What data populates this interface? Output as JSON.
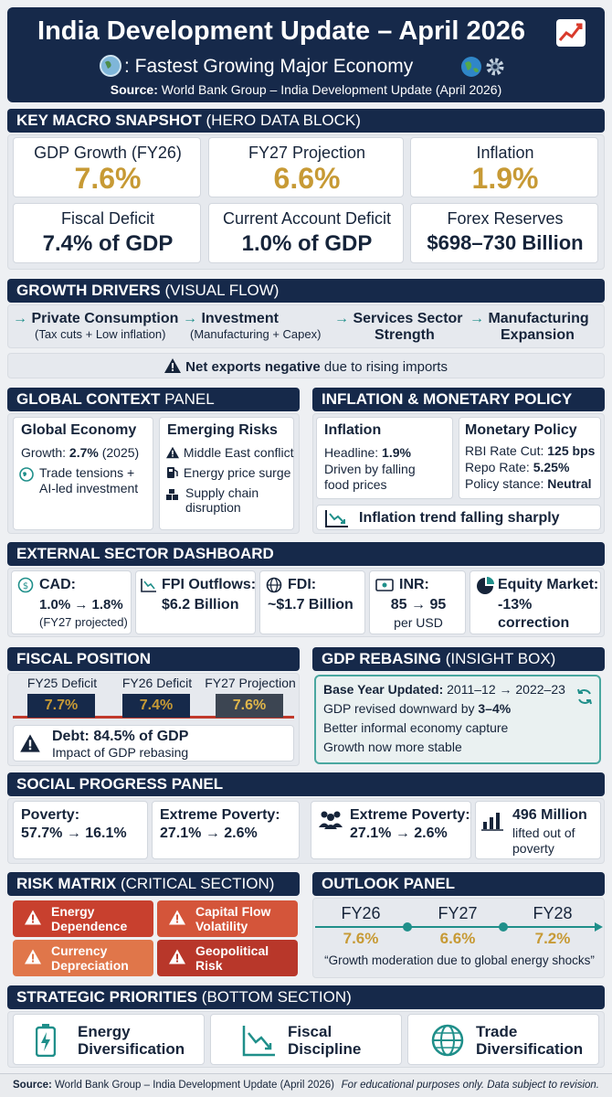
{
  "header": {
    "title": "India Development Update – April 2026",
    "subtitle": ": Fastest Growing Major Economy",
    "source_label": "Source:",
    "source_text": "World Bank Group – India Development Update (April 2026)"
  },
  "macro": {
    "section_bold": "KEY MACRO SNAPSHOT",
    "section_sub": "(HERO DATA BLOCK)",
    "cards": [
      {
        "label": "GDP Growth (FY26)",
        "value": "7.6%"
      },
      {
        "label": "FY27 Projection",
        "value": "6.6%"
      },
      {
        "label": "Inflation",
        "value": "1.9%"
      },
      {
        "label": "Fiscal Deficit",
        "value": "7.4% of GDP"
      },
      {
        "label": "Current Account Deficit",
        "value": "1.0% of GDP"
      },
      {
        "label": "Forex Reserves",
        "value": "$698–730 Billion"
      }
    ]
  },
  "drivers": {
    "section_bold": "GROWTH DRIVERS",
    "section_sub": "(VISUAL FLOW)",
    "items": [
      {
        "title": "Private Consumption",
        "sub": "(Tax cuts + Low inflation)"
      },
      {
        "title": "Investment",
        "sub": "(Manufacturing + Capex)"
      },
      {
        "title": "Services Sector",
        "sub": "Strength"
      },
      {
        "title": "Manufacturing",
        "sub": "Expansion"
      }
    ],
    "warning_bold": "Net exports negative",
    "warning_rest": "due to rising imports"
  },
  "global": {
    "section_bold": "GLOBAL CONTEXT",
    "section_sub": "PANEL",
    "economy_title": "Global Economy",
    "growth_label": "Growth:",
    "growth_value": "2.7%",
    "growth_year": "(2025)",
    "trend_line1": "Trade tensions +",
    "trend_line2": "AI-led investment",
    "risks_title": "Emerging Risks",
    "risk1": "Middle East conflict",
    "risk2": "Energy price surge",
    "risk3_line1": "Supply chain",
    "risk3_line2": "disruption"
  },
  "inflation_policy": {
    "section": "INFLATION & MONETARY POLICY",
    "inflation_title": "Inflation",
    "headline_label": "Headline:",
    "headline_value": "1.9%",
    "driven_line1": "Driven by falling",
    "driven_line2": "food prices",
    "policy_title": "Monetary Policy",
    "rate_cut_label": "RBI Rate Cut:",
    "rate_cut_value": "125 bps",
    "repo_label": "Repo Rate:",
    "repo_value": "5.25%",
    "stance_label": "Policy stance:",
    "stance_value": "Neutral",
    "trend_text": "Inflation trend falling sharply"
  },
  "external": {
    "section": "EXTERNAL SECTOR DASHBOARD",
    "cad_label": "CAD:",
    "cad_value": "1.0% → 1.8%",
    "cad_note": "(FY27 projected)",
    "fpi_label": "FPI Outflows:",
    "fpi_value": "$6.2 Billion",
    "fdi_label": "FDI:",
    "fdi_value": "~$1.7 Billion",
    "inr_label": "INR:",
    "inr_value": "85 → 95",
    "inr_note": "per USD",
    "equity_label": "Equity Market:",
    "equity_value": "-13%",
    "equity_note": "correction"
  },
  "fiscal": {
    "section": "FISCAL POSITION",
    "items": [
      {
        "label": "FY25 Deficit",
        "value": "7.7%"
      },
      {
        "label": "FY26 Deficit",
        "value": "7.4%"
      },
      {
        "label": "FY27 Projection",
        "value": "7.6%"
      }
    ],
    "debt_text": "Debt: 84.5% of GDP",
    "debt_note": "Impact of GDP rebasing"
  },
  "rebasing": {
    "section_bold": "GDP REBASING",
    "section_sub": "(INSIGHT BOX)",
    "base_label": "Base Year Updated:",
    "base_value": "2011–12 → 2022–23",
    "revised_text": "GDP revised downward by",
    "revised_value": "3–4%",
    "line3": "Better informal economy capture",
    "line4": "Growth now more stable"
  },
  "social": {
    "section": "SOCIAL PROGRESS PANEL",
    "poverty_label": "Poverty:",
    "poverty_value": "57.7% → 16.1%",
    "extreme_label": "Extreme Poverty:",
    "extreme_value": "27.1% → 2.6%",
    "extreme2_label": "Extreme Poverty:",
    "extreme2_value": "27.1% → 2.6%",
    "lifted_value": "496 Million",
    "lifted_line2": "lifted out of",
    "lifted_line3": "poverty"
  },
  "risk": {
    "section_bold": "RISK MATRIX",
    "section_sub": "(CRITICAL SECTION)",
    "items": [
      {
        "line1": "Energy",
        "line2": "Dependence",
        "color": "#c8402e"
      },
      {
        "line1": "Capital Flow",
        "line2": "Volatility",
        "color": "#d4553a"
      },
      {
        "line1": "Currency",
        "line2": "Depreciation",
        "color": "#e0764a"
      },
      {
        "line1": "Geopolitical",
        "line2": "Risk",
        "color": "#b8372a"
      }
    ]
  },
  "outlook": {
    "section": "OUTLOOK PANEL",
    "years": [
      "FY26",
      "FY27",
      "FY28"
    ],
    "values": [
      "7.6%",
      "6.6%",
      "7.2%"
    ],
    "quote": "“Growth moderation due to global energy shocks”"
  },
  "priorities": {
    "section_bold": "STRATEGIC PRIORITIES",
    "section_sub": "(BOTTOM SECTION)",
    "items": [
      {
        "line1": "Energy",
        "line2": "Diversification",
        "icon": "battery-icon"
      },
      {
        "line1": "Fiscal",
        "line2": "Discipline",
        "icon": "chart-down-icon"
      },
      {
        "line1": "Trade",
        "line2": "Diversification",
        "icon": "globe-icon"
      }
    ]
  },
  "footer": {
    "source_label": "Source:",
    "source_text": "World Bank Group – India Development Update (April 2026)",
    "disclaimer": "For educational purposes only. Data subject to revision."
  },
  "colors": {
    "navy": "#16294a",
    "gold": "#c79a35",
    "teal": "#1f8f8a"
  }
}
